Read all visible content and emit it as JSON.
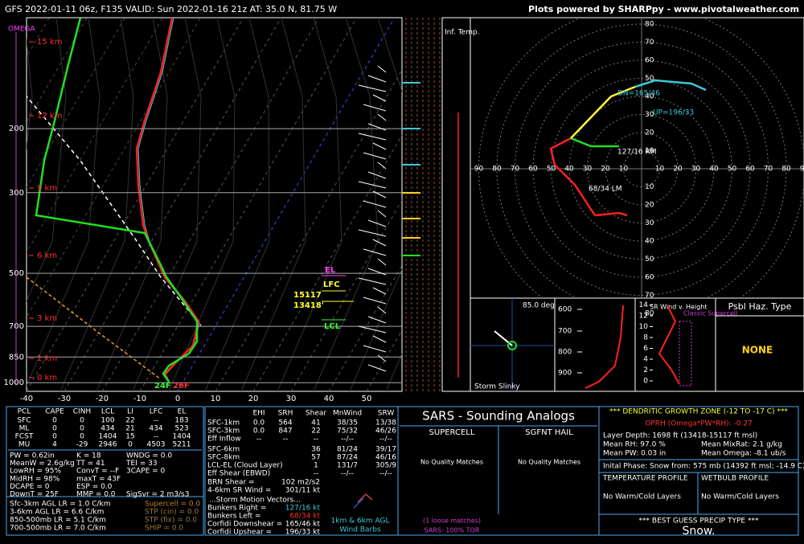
{
  "header": {
    "title": "GFS 2022-01-11 06z, F135  VALID: Sun 2022-01-16 21z  AT: 35.0 N, 81.75 W",
    "credit": "Plots powered by SHARPpy - www.pivotalweather.com"
  },
  "skewt": {
    "omega_label": "OMEGA",
    "pressure_ticks": [
      200,
      300,
      500,
      700,
      850,
      1000
    ],
    "temperature_ticks": [
      -40,
      -30,
      -20,
      -10,
      0,
      10,
      20,
      30,
      40,
      50
    ],
    "height_labels": [
      "15 km",
      "12 km",
      "9 km",
      "6 km",
      "3 km",
      "1 km",
      "0 km"
    ],
    "parcel_labels": {
      "el": "EL",
      "lfc": "LFC",
      "lfc_height": "15117",
      "lcl_height": "13418'",
      "lcl": "LCL",
      "surface_dewpoint": "24F",
      "surface_temp": "26F"
    }
  },
  "inferred_temp": {
    "label": "Inf. Temp."
  },
  "hodograph": {
    "axis_labels": [
      10,
      20,
      30,
      40,
      50,
      60,
      70,
      80,
      90
    ],
    "annotations": [
      "DN=165/46",
      "UP=196/33",
      "127/16 RM",
      "68/34 LM"
    ]
  },
  "slinky": {
    "angle": "85.0 deg",
    "label": "Storm Slinky"
  },
  "thetae": {
    "pressure_ticks": [
      600,
      700,
      800,
      900
    ]
  },
  "sr_wind": {
    "title": "SR Wind v. Height",
    "supercell": "Classic Supercell",
    "height_ticks": [
      0,
      2,
      4,
      6,
      8,
      10,
      12,
      14
    ]
  },
  "hazard": {
    "title": "Psbl Haz. Type",
    "value": "NONE"
  },
  "thermo": {
    "headers": [
      "PCL",
      "CAPE",
      "CINH",
      "LCL",
      "LI",
      "LFC",
      "EL"
    ],
    "rows": [
      [
        "SFC",
        "0",
        "0",
        "100",
        "22",
        "--",
        "183"
      ],
      [
        "ML",
        "0",
        "0",
        "434",
        "21",
        "434",
        "523"
      ],
      [
        "FCST",
        "0",
        "0",
        "1404",
        "15",
        "--",
        "1404"
      ],
      [
        "MU",
        "4",
        "-29",
        "2946",
        "0",
        "4503",
        "5211"
      ]
    ],
    "indices": [
      [
        "PW = 0.62in",
        "K = 18",
        "WNDG = 0.0"
      ],
      [
        "MeanW = 2.6g/kg",
        "TT = 41",
        "TEI = 33"
      ],
      [
        "LowRH = 95%",
        "ConvT = --F",
        "3CAPE = 0"
      ],
      [
        "MidRH = 98%",
        "maxT = 43F",
        null
      ],
      [
        "DCAPE = 0",
        "ESP = 0.0",
        null
      ],
      [
        "DownT = 25F",
        "MMP = 0.0",
        "SigSvr = 2 m3/s3"
      ]
    ],
    "lapse_rates": [
      "Sfc-3km AGL LR = 1.0 C/km",
      "3-6km AGL LR = 6.6 C/km",
      "850-500mb LR = 5.1 C/km",
      "700-500mb LR = 7.0 C/km"
    ],
    "composites": [
      "Supercell = 0.0",
      "STP (cin) = 0.0",
      "STP (fix) = 0.0",
      "SHIP = 0.0"
    ]
  },
  "kinematic": {
    "headers": [
      "EHI",
      "SRH",
      "Shear",
      "MnWind",
      "SRW"
    ],
    "rows": [
      [
        "SFC-1km",
        "0.0",
        "564",
        "41",
        "38/35",
        "13/38"
      ],
      [
        "SFC-3km",
        "0.0",
        "847",
        "22",
        "75/32",
        "46/26"
      ],
      [
        "Eff Inflow",
        "--",
        "--",
        "--",
        "--/--",
        "--/--"
      ],
      [
        "SFC-6km",
        null,
        null,
        "36",
        "81/24",
        "39/17"
      ],
      [
        "SFC-8km",
        null,
        null,
        "57",
        "87/24",
        "46/16"
      ],
      [
        "LCL-EL (Cloud Layer)",
        null,
        null,
        "1",
        "131/7",
        "305/9"
      ],
      [
        "Eff Shear (EBWD)",
        null,
        null,
        "--",
        "--/--",
        "--/--"
      ]
    ],
    "extra": [
      [
        "BRN Shear =",
        "102 m2/s2"
      ],
      [
        "4-6km SR Wind =",
        "301/11 kt"
      ]
    ],
    "storm_motion_title": "...Storm Motion Vectors...",
    "storm_motion": [
      [
        "Bunkers Right =",
        "127/16 kt"
      ],
      [
        "Bunkers Left =",
        "68/34 kt"
      ],
      [
        "Corfidi Downshear =",
        "165/46 kt"
      ],
      [
        "Corfidi Upshear =",
        "196/33 kt"
      ]
    ],
    "barbs_label": [
      "1km & 6km AGL",
      "Wind Barbs"
    ]
  },
  "sars": {
    "title": "SARS - Sounding Analogs",
    "supercell": "SUPERCELL",
    "hail": "SGFNT HAIL",
    "supercell_matches": "No Quality Matches",
    "hail_matches": "No Quality Matches",
    "loose": "(1 loose matches)",
    "tor": "SARS: 100% TOR"
  },
  "dgz": {
    "title": "*** DENDRITIC GROWTH ZONE (-12 TO -17 C) ***",
    "oprh": "OPRH (Omega*PW*RH): -0.27",
    "depth": "Layer Depth: 1698 ft (13418-15117 ft msl)",
    "mean_rh": "Mean RH: 97.0 %",
    "mean_mixrat": "Mean MixRat: 2.1 g/kg",
    "mean_pw": "Mean PW: 0.03 in",
    "mean_omega": "Mean Omega: -8.1 ub/s",
    "phase": "Inital Phase: Snow from: 575 mb (14392 ft msl; -14.9 C)",
    "temp_profile": "TEMPERATURE PROFILE",
    "wetbulb_profile": "WETBULB PROFILE",
    "temp_layers": "No Warm/Cold Layers",
    "wetbulb_layers": "No Warm/Cold Layers",
    "precip_title": "*** BEST GUESS PRECIP TYPE ***",
    "precip": "Snow."
  }
}
